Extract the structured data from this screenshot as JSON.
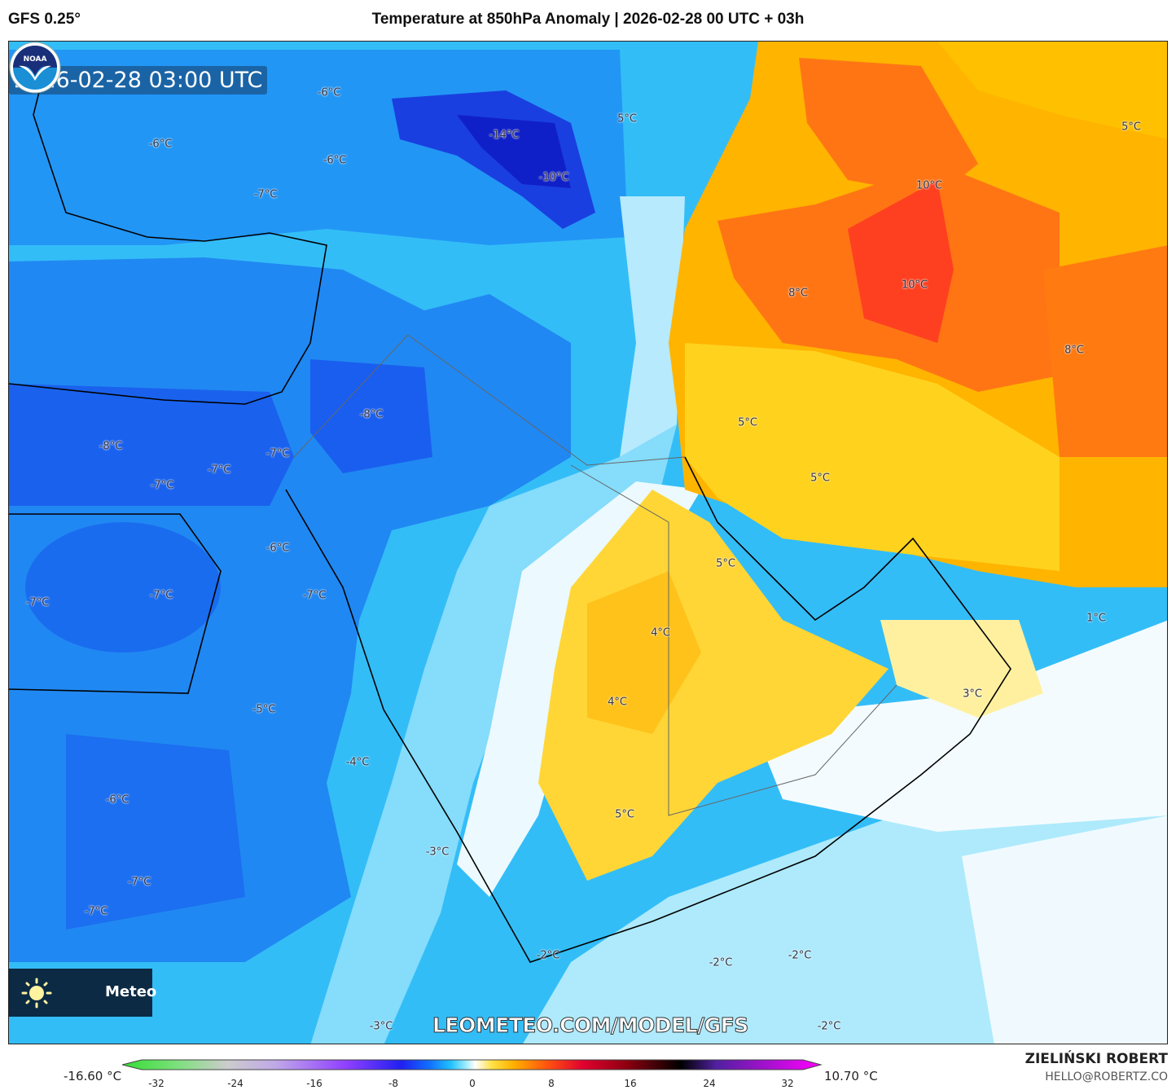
{
  "header": {
    "model": "GFS 0.25°",
    "title": "Temperature at 850hPa Anomaly | 2026-02-28 00 UTC + 03h"
  },
  "map": {
    "timestamp": "2026-02-28 03:00 UTC",
    "labels": [
      "-6°C",
      "-14°C",
      "-6°C",
      "-6°C",
      "-10°C",
      "-7°C",
      "5°C",
      "5°C",
      "10°C",
      "10°C",
      "8°C",
      "8°C",
      "-8°C",
      "5°C",
      "-8°C",
      "-7°C",
      "-7°C",
      "-7°C",
      "5°C",
      "-6°C",
      "5°C",
      "-7°C",
      "-7°C",
      "-7°C",
      "1°C",
      "4°C",
      "4°C",
      "3°C",
      "-5°C",
      "-4°C",
      "-6°C",
      "5°C",
      "-3°C",
      "-7°C",
      "-7°C",
      "-2°C",
      "-2°C",
      "-2°C",
      "-3°C",
      "-2°C"
    ],
    "logo_text": "Meteo",
    "watermark": "LEOMETEO.COM/MODEL/GFS",
    "noaa_logo": "NOAA"
  },
  "colorbar": {
    "min_label": "-16.60 °C",
    "max_label": "10.70 °C",
    "ticks": [
      "-32",
      "-24",
      "-16",
      "-8",
      "0",
      "8",
      "16",
      "24",
      "32"
    ],
    "colors": {
      "cold_min": "#33dd33",
      "zero": "#ffffff",
      "warm": "#ff8000",
      "hot_max": "#ff00ff"
    }
  },
  "credits": {
    "author": "ZIELIŃSKI ROBERT",
    "email": "HELLO@ROBERTZ.CO"
  }
}
